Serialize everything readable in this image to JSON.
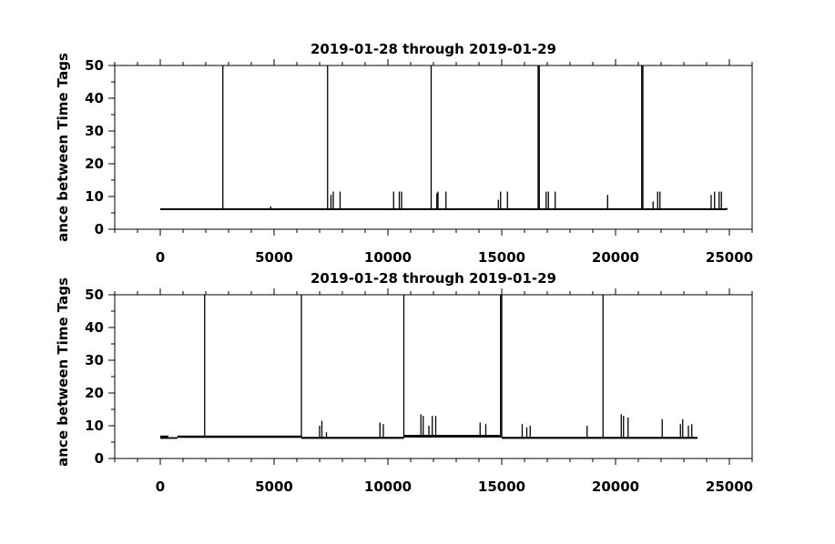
{
  "chart_data": [
    {
      "type": "line",
      "title": "2019-01-28 through 2019-01-29",
      "ylabel": "ance between Time Tags",
      "xlabel": "",
      "xlim": [
        -2000,
        26000
      ],
      "ylim": [
        0,
        50
      ],
      "x_ticks": [
        0,
        5000,
        10000,
        15000,
        20000,
        25000
      ],
      "y_ticks": [
        0,
        10,
        20,
        30,
        40,
        50
      ],
      "x_range": [
        0,
        24900
      ],
      "grid": false,
      "line_color": "#000000",
      "series": [
        {
          "baseline": 6.1,
          "spikes": [
            {
              "x": 2750,
              "y": 50
            },
            {
              "x": 4850,
              "y": 7
            },
            {
              "x": 7350,
              "y": 50
            },
            {
              "x": 7500,
              "y": 10.5
            },
            {
              "x": 7600,
              "y": 11.5
            },
            {
              "x": 7900,
              "y": 11.5
            },
            {
              "x": 10250,
              "y": 11.5
            },
            {
              "x": 10500,
              "y": 11.5
            },
            {
              "x": 10600,
              "y": 11.5
            },
            {
              "x": 11900,
              "y": 50
            },
            {
              "x": 12150,
              "y": 11
            },
            {
              "x": 12200,
              "y": 11.5
            },
            {
              "x": 12550,
              "y": 11.5
            },
            {
              "x": 14850,
              "y": 9
            },
            {
              "x": 14950,
              "y": 11.5
            },
            {
              "x": 15250,
              "y": 11.5
            },
            {
              "x": 16600,
              "y": 50
            },
            {
              "x": 16650,
              "y": 50
            },
            {
              "x": 16950,
              "y": 11.5
            },
            {
              "x": 17050,
              "y": 11.5
            },
            {
              "x": 17350,
              "y": 11.5
            },
            {
              "x": 19650,
              "y": 10.5
            },
            {
              "x": 21150,
              "y": 50
            },
            {
              "x": 21200,
              "y": 50
            },
            {
              "x": 21650,
              "y": 8.5
            },
            {
              "x": 21850,
              "y": 11.5
            },
            {
              "x": 21950,
              "y": 11.5
            },
            {
              "x": 24200,
              "y": 10.5
            },
            {
              "x": 24350,
              "y": 11.5
            },
            {
              "x": 24550,
              "y": 11.5
            },
            {
              "x": 24650,
              "y": 11.5
            }
          ]
        }
      ]
    },
    {
      "type": "line",
      "title": "2019-01-28 through 2019-01-29",
      "ylabel": "ance between Time Tags",
      "xlabel": "",
      "xlim": [
        -2000,
        26000
      ],
      "ylim": [
        0,
        50
      ],
      "x_ticks": [
        0,
        5000,
        10000,
        15000,
        20000,
        25000
      ],
      "y_ticks": [
        0,
        10,
        20,
        30,
        40,
        50
      ],
      "x_range": [
        0,
        23600
      ],
      "grid": false,
      "line_color": "#000000",
      "series": [
        {
          "segments": [
            {
              "x0": 0,
              "x1": 350,
              "lo": 6.0,
              "hi": 7.0
            },
            {
              "x0": 350,
              "x1": 750,
              "lo": 6.0,
              "hi": 6.5
            },
            {
              "x0": 750,
              "x1": 6200,
              "lo": 6.3,
              "hi": 7.0
            },
            {
              "x0": 6200,
              "x1": 10700,
              "lo": 6.0,
              "hi": 6.6
            },
            {
              "x0": 10700,
              "x1": 15000,
              "lo": 6.4,
              "hi": 7.2
            },
            {
              "x0": 15000,
              "x1": 23600,
              "lo": 6.0,
              "hi": 6.6
            }
          ],
          "spikes": [
            {
              "x": 1950,
              "y": 50
            },
            {
              "x": 6200,
              "y": 50
            },
            {
              "x": 7000,
              "y": 10
            },
            {
              "x": 7100,
              "y": 11.5
            },
            {
              "x": 7300,
              "y": 8
            },
            {
              "x": 9650,
              "y": 11
            },
            {
              "x": 9800,
              "y": 10.5
            },
            {
              "x": 10700,
              "y": 50
            },
            {
              "x": 11450,
              "y": 13.5
            },
            {
              "x": 11550,
              "y": 13
            },
            {
              "x": 11800,
              "y": 10
            },
            {
              "x": 11950,
              "y": 13
            },
            {
              "x": 12100,
              "y": 13
            },
            {
              "x": 14050,
              "y": 11
            },
            {
              "x": 14300,
              "y": 10.5
            },
            {
              "x": 14950,
              "y": 50
            },
            {
              "x": 15000,
              "y": 50
            },
            {
              "x": 15900,
              "y": 10.5
            },
            {
              "x": 16100,
              "y": 9.5
            },
            {
              "x": 16250,
              "y": 10
            },
            {
              "x": 18750,
              "y": 10
            },
            {
              "x": 19450,
              "y": 50
            },
            {
              "x": 20250,
              "y": 13.5
            },
            {
              "x": 20350,
              "y": 13
            },
            {
              "x": 20550,
              "y": 12.5
            },
            {
              "x": 22050,
              "y": 12
            },
            {
              "x": 22850,
              "y": 10.5
            },
            {
              "x": 22950,
              "y": 12
            },
            {
              "x": 23200,
              "y": 10
            },
            {
              "x": 23350,
              "y": 10.5
            }
          ]
        }
      ]
    }
  ]
}
